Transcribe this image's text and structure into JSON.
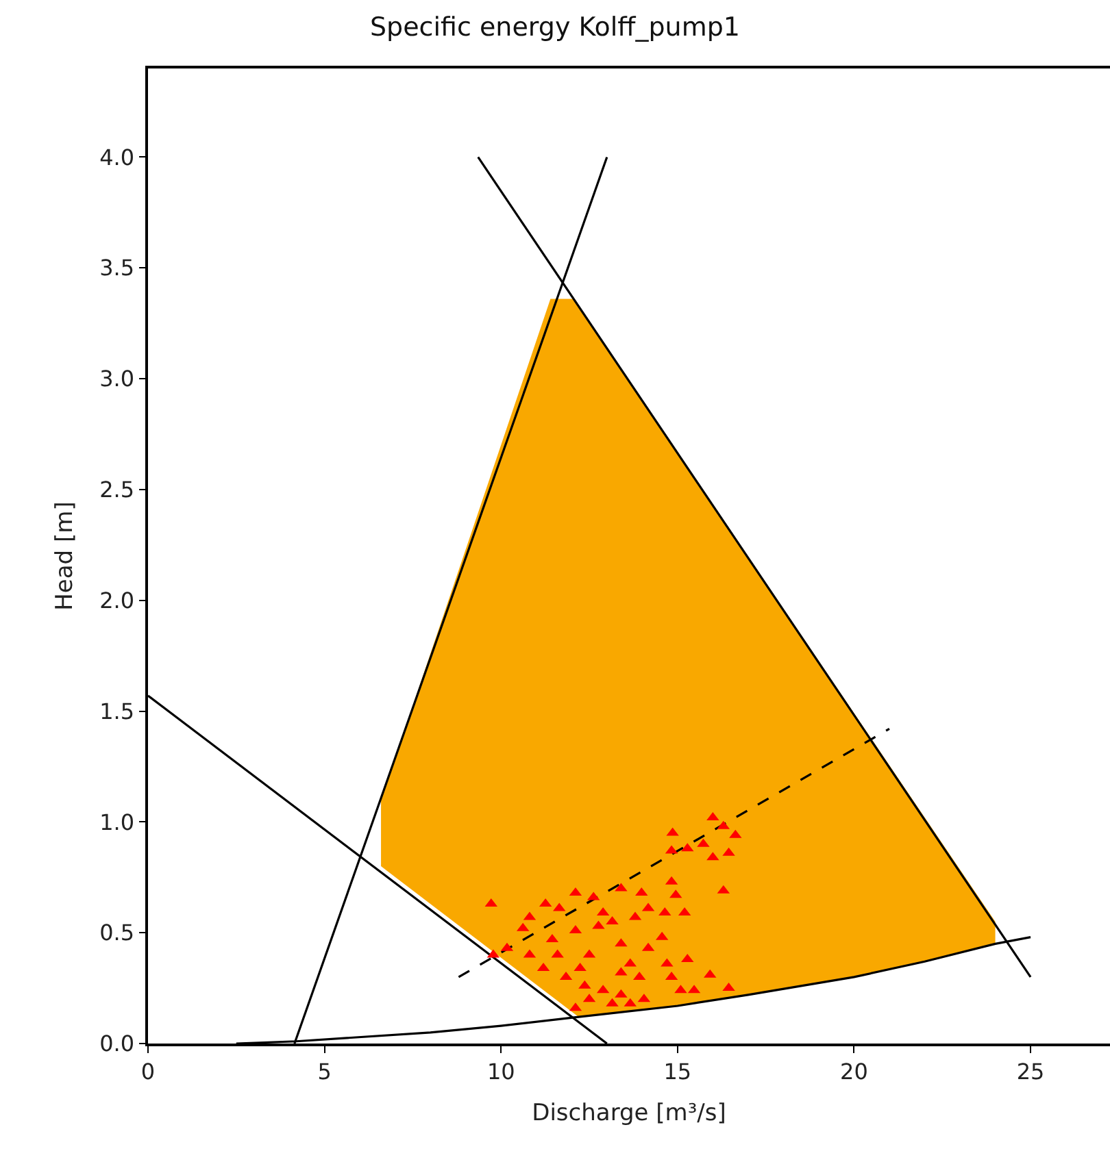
{
  "chart_data": {
    "type": "scatter",
    "title": "Specific energy Kolff_pump1",
    "xlabel": "Discharge [m³/s]",
    "ylabel": "Head [m]",
    "xlim": [
      0,
      27.25
    ],
    "ylim": [
      0,
      4.4
    ],
    "xticks": [
      0,
      5,
      10,
      15,
      20,
      25
    ],
    "yticks": [
      {
        "value": 0,
        "label": "0.0"
      },
      {
        "value": 0.5,
        "label": "0.5"
      },
      {
        "value": 1.0,
        "label": "1.0"
      },
      {
        "value": 1.5,
        "label": "1.5"
      },
      {
        "value": 2.0,
        "label": "2.0"
      },
      {
        "value": 2.5,
        "label": "2.5"
      },
      {
        "value": 3.0,
        "label": "3.0"
      },
      {
        "value": 3.5,
        "label": "3.5"
      },
      {
        "value": 4.0,
        "label": "4.0"
      }
    ],
    "series": [
      {
        "type": "area",
        "color": "#f9a800",
        "x": [
          6.6,
          6.6,
          11.4,
          12.05,
          24.0,
          24.0,
          22,
          20,
          17,
          15,
          12.2,
          6.6
        ],
        "values": [
          0.8,
          1.1,
          3.36,
          3.36,
          0.55,
          0.45,
          0.37,
          0.3,
          0.22,
          0.17,
          0.12,
          0.8
        ]
      },
      {
        "type": "line",
        "color": "#000000",
        "x": [
          4.15,
          13.0
        ],
        "values": [
          0,
          4.0
        ]
      },
      {
        "type": "line",
        "color": "#000000",
        "x": [
          9.35,
          25.0
        ],
        "values": [
          4.0,
          0.3
        ]
      },
      {
        "type": "line",
        "color": "#000000",
        "x": [
          0,
          13.0
        ],
        "values": [
          1.57,
          0
        ]
      },
      {
        "type": "line",
        "color": "#000000",
        "x": [
          2.5,
          4.2,
          8,
          10,
          12.2,
          15,
          17,
          20,
          22,
          24,
          25
        ],
        "values": [
          0,
          0.01,
          0.05,
          0.08,
          0.12,
          0.17,
          0.22,
          0.3,
          0.37,
          0.45,
          0.48
        ]
      },
      {
        "type": "line",
        "color": "#000000",
        "line_style": "dashed",
        "x": [
          8.8,
          21.0
        ],
        "values": [
          0.3,
          1.42
        ]
      },
      {
        "marker": "triangle",
        "color": "#ff0000",
        "x": [
          9.72,
          16.0,
          16.3,
          16.64,
          14.86,
          14.83,
          15.28,
          15.73,
          16.0,
          16.45,
          16.3,
          14.83,
          14.95,
          14.64,
          15.2,
          14.56,
          14.17,
          14.7,
          15.28,
          15.92,
          14.83,
          15.09,
          15.47,
          16.45,
          13.92,
          13.4,
          12.11,
          11.26,
          11.65,
          12.62,
          13.4,
          13.98,
          10.62,
          10.17,
          9.78,
          10.81,
          11.45,
          12.11,
          12.76,
          13.15,
          13.8,
          14.17,
          11.2,
          11.84,
          12.37,
          12.89,
          13.4,
          14.05,
          13.66,
          13.15,
          12.5,
          12.11,
          11.6,
          12.5,
          13.4,
          12.89,
          10.81,
          12.24,
          13.66
        ],
        "values": [
          0.63,
          1.02,
          0.98,
          0.94,
          0.95,
          0.87,
          0.88,
          0.9,
          0.84,
          0.86,
          0.69,
          0.73,
          0.67,
          0.59,
          0.59,
          0.48,
          0.43,
          0.36,
          0.38,
          0.31,
          0.3,
          0.24,
          0.24,
          0.25,
          0.3,
          0.32,
          0.68,
          0.63,
          0.61,
          0.66,
          0.7,
          0.68,
          0.52,
          0.43,
          0.4,
          0.4,
          0.47,
          0.51,
          0.53,
          0.55,
          0.57,
          0.61,
          0.34,
          0.3,
          0.26,
          0.24,
          0.22,
          0.2,
          0.18,
          0.18,
          0.2,
          0.16,
          0.4,
          0.4,
          0.45,
          0.59,
          0.57,
          0.34,
          0.36
        ]
      }
    ]
  }
}
